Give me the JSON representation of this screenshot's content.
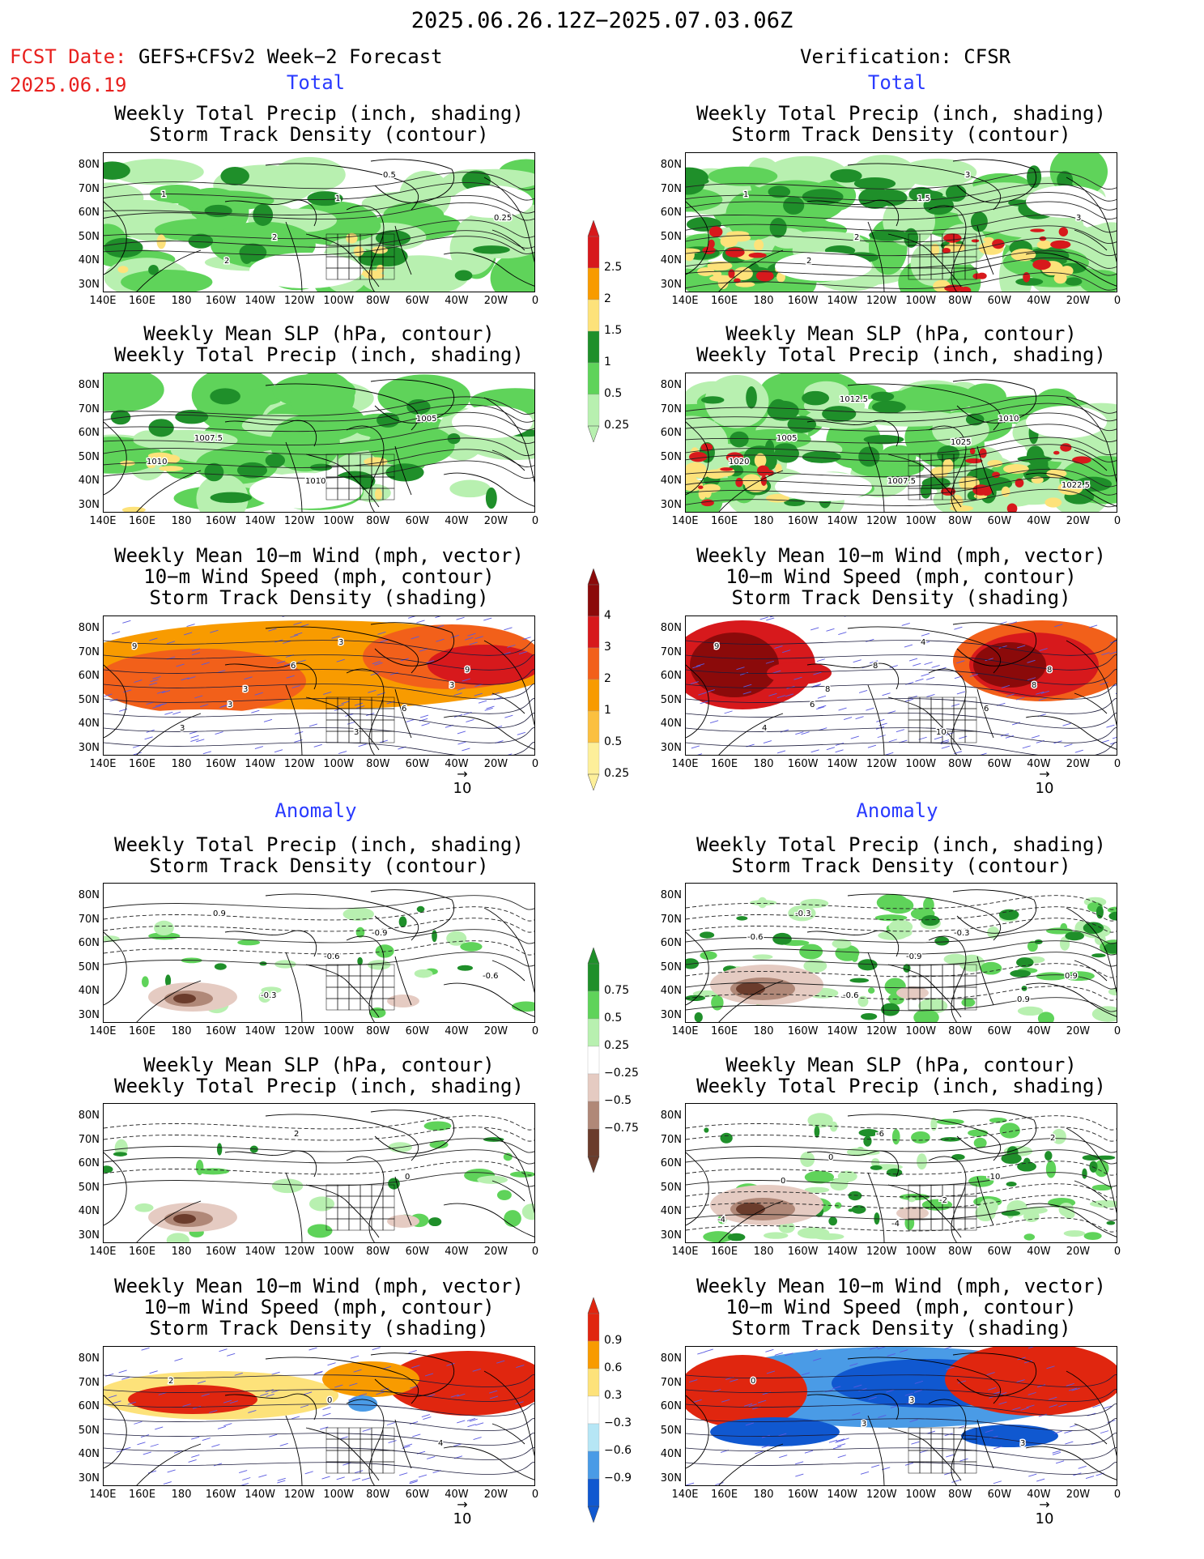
{
  "header": {
    "date_range": "2025.06.26.12Z−2025.07.03.06Z",
    "fcst_label": "FCST Date:",
    "fcst_model": "GEFS+CFSv2 Week−2 Forecast",
    "fcst_date": "2025.06.19",
    "verification": "Verification: CFSR"
  },
  "sections": {
    "total": "Total",
    "anomaly": "Anomaly"
  },
  "panel_titles": {
    "precip_storm": "Weekly Total Precip (inch, shading)\nStorm Track Density (contour)",
    "slp_precip": "Weekly Mean SLP (hPa, contour)\nWeekly Total Precip (inch, shading)",
    "wind": "Weekly Mean 10−m Wind (mph, vector)\n10−m Wind Speed (mph, contour)\nStorm Track Density (shading)"
  },
  "axes": {
    "lat_ticks": [
      "80N",
      "70N",
      "60N",
      "50N",
      "40N",
      "30N"
    ],
    "lon_ticks": [
      "140E",
      "160E",
      "180",
      "160W",
      "140W",
      "120W",
      "100W",
      "80W",
      "60W",
      "40W",
      "20W",
      "0"
    ]
  },
  "vector_ref": "10",
  "colorbars": {
    "precip_total": {
      "labels": [
        "2.5",
        "2",
        "1.5",
        "1",
        "0.5",
        "0.25"
      ],
      "colors": [
        "#d7191c",
        "#f89b00",
        "#fde27a",
        "#1f8f2a",
        "#5fd35a",
        "#b8f0b0"
      ]
    },
    "storm_total": {
      "labels": [
        "4",
        "3",
        "2",
        "1",
        "0.5",
        "0.25"
      ],
      "colors": [
        "#8b0a0a",
        "#d7191c",
        "#f2601a",
        "#f89b00",
        "#fbc040",
        "#fdef9a"
      ]
    },
    "precip_anom": {
      "labels": [
        "0.75",
        "0.5",
        "0.25",
        "−0.25",
        "−0.5",
        "−0.75"
      ],
      "colors": [
        "#1f8f2a",
        "#5fd35a",
        "#b8f0b0",
        "#ffffff",
        "#e5cbc2",
        "#b08878",
        "#6b3c2c"
      ]
    },
    "storm_anom": {
      "labels": [
        "0.9",
        "0.6",
        "0.3",
        "−0.3",
        "−0.6",
        "−0.9"
      ],
      "colors": [
        "#e0260f",
        "#f89b00",
        "#fde27a",
        "#ffffff",
        "#b6e6f5",
        "#4a9be6",
        "#1058d0"
      ]
    }
  },
  "contour_labels": {
    "L1": [
      "1",
      "2",
      "0.5",
      "0.25",
      "2",
      "1"
    ],
    "R1": [
      "1",
      "2",
      "3",
      "3",
      "2",
      "1.5"
    ],
    "L2": [
      "1007.5",
      "1010",
      "1005",
      "1010"
    ],
    "R2": [
      "1005",
      "1007.5",
      "1010",
      "1020",
      "1012.5",
      "1025",
      "1022.5"
    ],
    "L3": [
      "3",
      "3",
      "3",
      "3",
      "6",
      "6",
      "9",
      "3",
      "3",
      "9"
    ],
    "R3": [
      "6",
      "4",
      "8",
      "4",
      "8",
      "6",
      "9",
      "8",
      "10",
      "8"
    ],
    "L4": [
      "-0.3",
      "-0.9",
      "-0.6",
      "0.9",
      "-0.6"
    ],
    "R4": [
      "-0.6",
      "-0.3",
      "0.9",
      "-0.3",
      "-0.9",
      "0.9",
      "-0.6"
    ],
    "L5": [
      "2",
      "0"
    ],
    "R5": [
      "-6",
      "-10",
      "-4",
      "0",
      "-2",
      "2",
      "0",
      "-4"
    ],
    "L6": [
      "0",
      "4",
      "2"
    ],
    "R6": [
      "3",
      "3",
      "0",
      "3"
    ]
  }
}
